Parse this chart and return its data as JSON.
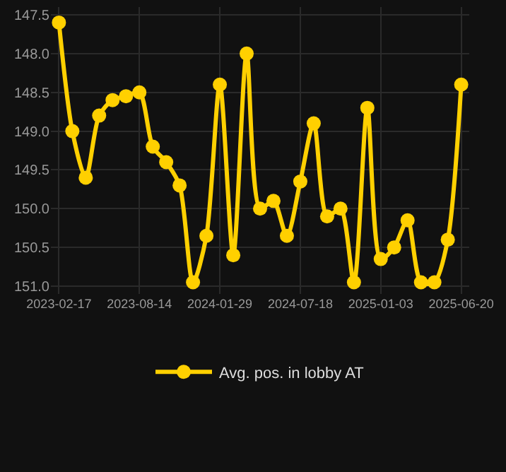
{
  "chart_data": {
    "type": "line",
    "categories": [
      "2023-02-17",
      null,
      null,
      null,
      null,
      null,
      "2023-08-14",
      null,
      null,
      null,
      null,
      null,
      "2024-01-29",
      null,
      null,
      null,
      null,
      null,
      "2024-07-18",
      null,
      null,
      null,
      null,
      null,
      "2025-01-03",
      null,
      null,
      null,
      null,
      null,
      "2025-06-20"
    ],
    "series": [
      {
        "name": "Avg. pos. in lobby AT",
        "color": "#ffd000",
        "values": [
          147.6,
          149.0,
          149.6,
          148.8,
          148.6,
          148.55,
          148.5,
          149.2,
          149.4,
          149.7,
          150.95,
          150.35,
          148.4,
          150.6,
          148.0,
          150.0,
          149.9,
          150.35,
          149.65,
          148.9,
          150.1,
          150.0,
          150.95,
          148.7,
          150.65,
          150.5,
          150.15,
          150.95,
          150.95,
          150.4,
          148.4
        ]
      }
    ],
    "ylim": [
      151.1,
      147.4
    ],
    "yticks": [
      {
        "value": 147.5,
        "label": "147.5"
      },
      {
        "value": 148,
        "label": "148.0"
      },
      {
        "value": 148.5,
        "label": "148.5"
      },
      {
        "value": 149,
        "label": "149.0"
      },
      {
        "value": 149.5,
        "label": "149.5"
      },
      {
        "value": 150,
        "label": "150.0"
      },
      {
        "value": 150.5,
        "label": "150.5"
      },
      {
        "value": 151,
        "label": "151.0"
      }
    ],
    "grid": true,
    "legend": "bottom",
    "marker": "circle",
    "line_style": "solid"
  }
}
